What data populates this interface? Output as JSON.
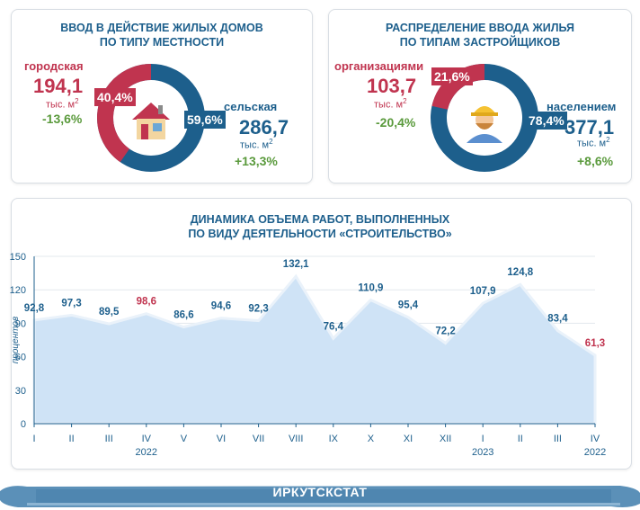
{
  "colors": {
    "red": "#c0344f",
    "blue": "#1d5f8c",
    "green": "#5a9a3c",
    "area": "#cfe3f6"
  },
  "left_panel": {
    "title_line1": "ВВОД В ДЕЙСТВИЕ ЖИЛЫХ ДОМОВ",
    "title_line2": "ПО ТИПУ МЕСТНОСТИ",
    "icon": "house-icon",
    "urban": {
      "label": "городская",
      "value": "194,1",
      "unit": "тыс. м",
      "unit_sup": "2",
      "change": "-13,6%",
      "share": "40,4%",
      "share_num": 40.4
    },
    "rural": {
      "label": "сельская",
      "value": "286,7",
      "unit": "тыс. м",
      "unit_sup": "2",
      "change": "+13,3%",
      "share": "59,6%",
      "share_num": 59.6
    }
  },
  "right_panel": {
    "title_line1": "РАСПРЕДЕЛЕНИЕ ВВОДА ЖИЛЬЯ",
    "title_line2": "ПО ТИПАМ ЗАСТРОЙЩИКОВ",
    "icon": "builder-icon",
    "organizations": {
      "label": "организациями",
      "value": "103,7",
      "unit": "тыс. м",
      "unit_sup": "2",
      "change": "-20,4%",
      "share": "21,6%",
      "share_num": 21.6
    },
    "population": {
      "label": "населением",
      "value": "377,1",
      "unit": "тыс. м",
      "unit_sup": "2",
      "change": "+8,6%",
      "share": "78,4%",
      "share_num": 78.4
    }
  },
  "chart_data": {
    "type": "area",
    "title_line1": "ДИНАМИКА ОБЪЕМА РАБОТ, ВЫПОЛНЕННЫХ",
    "title_line2": "ПО ВИДУ ДЕЯТЕЛЬНОСТИ «СТРОИТЕЛЬСТВО»",
    "ylabel": "процентов",
    "ylim": [
      0,
      150
    ],
    "yticks": [
      0,
      30,
      60,
      90,
      120,
      150
    ],
    "categories": [
      "I",
      "II",
      "III",
      "IV",
      "V",
      "VI",
      "VII",
      "VIII",
      "IX",
      "X",
      "XI",
      "XII",
      "I",
      "II",
      "III",
      "IV"
    ],
    "values": [
      92.8,
      97.3,
      89.5,
      98.6,
      86.6,
      94.6,
      92.3,
      132.1,
      76.4,
      110.9,
      95.4,
      72.2,
      107.9,
      124.8,
      83.4,
      61.3
    ],
    "value_labels": [
      "92,8",
      "97,3",
      "89,5",
      "98,6",
      "86,6",
      "94,6",
      "92,3",
      "132,1",
      "76,4",
      "110,9",
      "95,4",
      "72,2",
      "107,9",
      "124,8",
      "83,4",
      "61,3"
    ],
    "label_colors": [
      "blue",
      "blue",
      "blue",
      "red",
      "blue",
      "blue",
      "blue",
      "blue",
      "blue",
      "blue",
      "blue",
      "blue",
      "blue",
      "blue",
      "blue",
      "red"
    ],
    "year_labels": [
      {
        "text": "2022",
        "index": 3
      },
      {
        "text": "2023",
        "index": 12
      },
      {
        "text": "2022",
        "index": 15
      }
    ]
  },
  "footer": {
    "text": "ИРКУТСКСТАТ"
  }
}
